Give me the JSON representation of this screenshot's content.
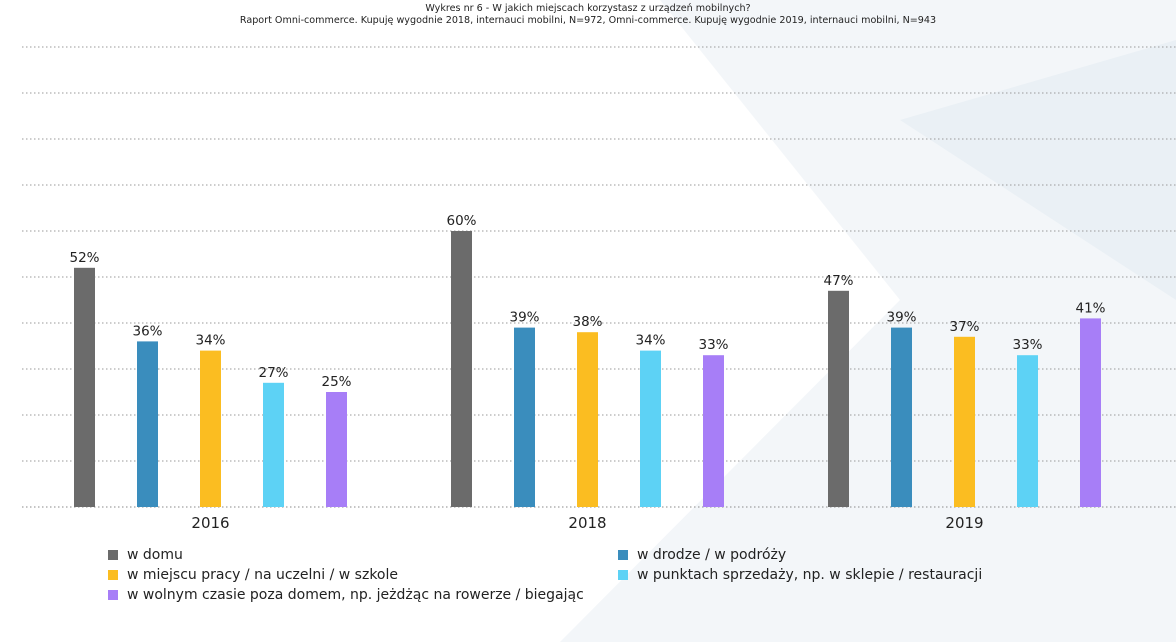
{
  "title": "Wykres nr 6 - W jakich miejscach korzystasz z urządzeń mobilnych?",
  "subtitle": "Raport Omni-commerce. Kupuję wygodnie 2018, internauci mobilni, N=972, Omni-commerce. Kupuję wygodnie 2019, internauci mobilni, N=943",
  "chart_data": {
    "type": "bar",
    "title": "Wykres nr 6 - W jakich miejscach korzystasz z urządzeń mobilnych?",
    "xlabel": "",
    "ylabel": "",
    "ylim": [
      0,
      100
    ],
    "grid": true,
    "value_suffix": "%",
    "categories": [
      "2016",
      "2018",
      "2019"
    ],
    "series": [
      {
        "name": "w domu",
        "color": "#6b6b6b",
        "values": [
          52,
          60,
          47
        ]
      },
      {
        "name": "w drodze / w podróży",
        "color": "#3a8dbd",
        "values": [
          36,
          39,
          39
        ]
      },
      {
        "name": "w miejscu pracy / na uczelni / w szkole",
        "color": "#fbbd21",
        "values": [
          34,
          38,
          37
        ]
      },
      {
        "name": "w punktach sprzedaży, np. w sklepie / restauracji",
        "color": "#5dd2f5",
        "values": [
          27,
          34,
          33
        ]
      },
      {
        "name": "w wolnym czasie poza domem, np. jeżdżąc na rowerze / biegając",
        "color": "#a77ef7",
        "values": [
          25,
          33,
          41
        ]
      }
    ]
  }
}
